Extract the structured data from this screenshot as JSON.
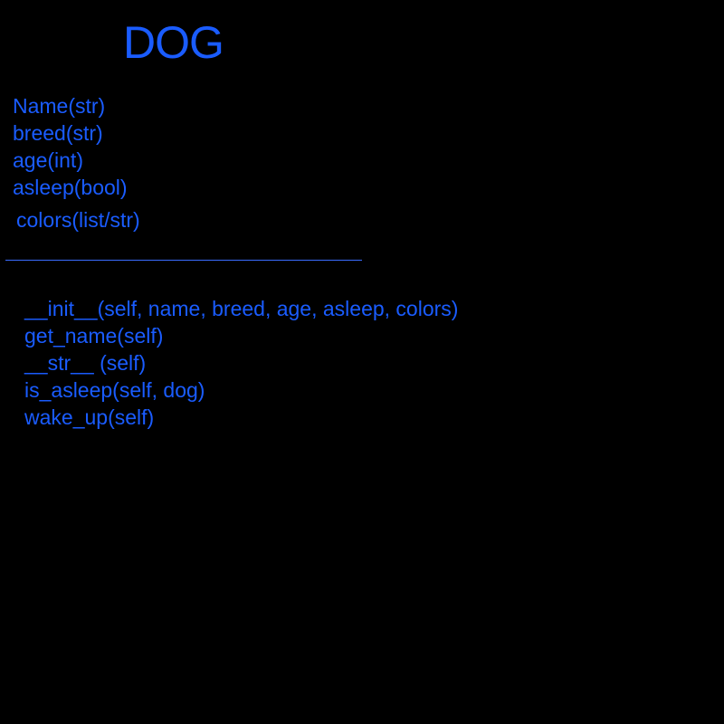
{
  "colors": {
    "background": "#000000",
    "text": "#1a5cff",
    "divider": "#3a6cff"
  },
  "class_box": {
    "name": "DOG",
    "attributes": [
      "Name(str)",
      "breed(str)",
      "age(int)",
      "asleep(bool)",
      "colors(list/str)"
    ],
    "methods": [
      "__init__(self, name, breed, age, asleep, colors)",
      "get_name(self)",
      "__str__ (self)",
      "is_asleep(self, dog)",
      "wake_up(self)"
    ]
  }
}
